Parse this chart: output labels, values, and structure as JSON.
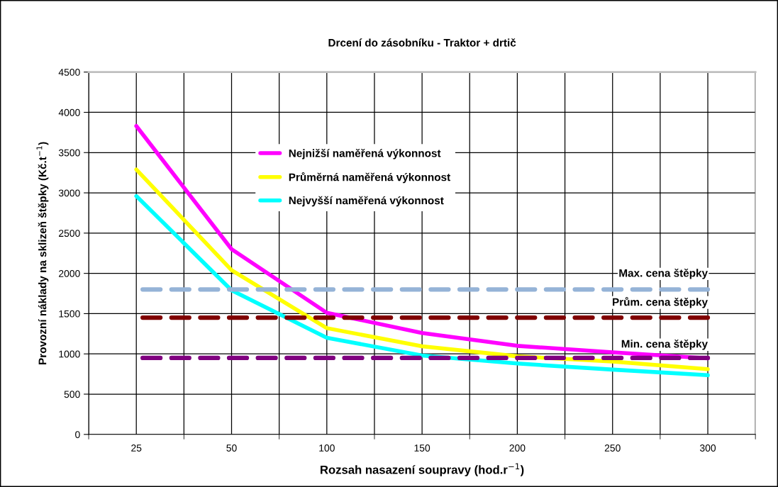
{
  "chart_data": {
    "type": "line",
    "title": "Drcení do zásobníku - Traktor + drtič",
    "xlabel": "Rozsah nasazení soupravy (hod.r$^{−1}$)",
    "ylabel": "Provozní náklady na sklizeň štěpky (Kč.t$^{−1}$)",
    "categories": [
      "25",
      "50",
      "100",
      "150",
      "200",
      "250",
      "300"
    ],
    "series": [
      {
        "name": "Nejnižší naměřená výkonnost",
        "color": "#ff00ff",
        "values": [
          3830,
          2300,
          1510,
          1260,
          1100,
          1020,
          945
        ]
      },
      {
        "name": "Průměrná naměřená výkonnost",
        "color": "#ffff00",
        "values": [
          3290,
          2040,
          1320,
          1095,
          970,
          905,
          810
        ]
      },
      {
        "name": "Nejvyšší naměřená výkonnost",
        "color": "#00ffff",
        "values": [
          2960,
          1790,
          1200,
          980,
          880,
          805,
          735
        ]
      },
      {
        "name": "Max. cena štěpky",
        "color": "#95b3d7",
        "line_style": "dashed",
        "values": [
          1800,
          1800,
          1800,
          1800,
          1800,
          1800,
          1800
        ]
      },
      {
        "name": "Prům. cena štěpky",
        "color": "#800000",
        "line_style": "dashed",
        "values": [
          1450,
          1450,
          1450,
          1450,
          1450,
          1450,
          1450
        ]
      },
      {
        "name": "Min. cena štěpky",
        "color": "#800080",
        "line_style": "dashed",
        "values": [
          950,
          950,
          950,
          950,
          950,
          950,
          950
        ]
      }
    ],
    "ylim": [
      0,
      4500
    ],
    "yticks": [
      0,
      500,
      1000,
      1500,
      2000,
      2500,
      3000,
      3500,
      4000,
      4500
    ],
    "grid": true,
    "legend": "top",
    "marker": "none",
    "line_style": "solid"
  }
}
